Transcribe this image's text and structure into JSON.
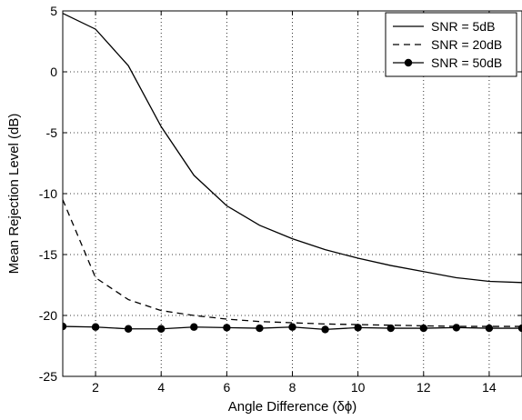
{
  "chart_data": {
    "type": "line",
    "title": "",
    "xlabel": "Angle Difference (δϕ)",
    "ylabel": "Mean Rejection Level (dB)",
    "xlim": [
      1,
      15
    ],
    "ylim": [
      -25,
      5
    ],
    "xticks": [
      2,
      4,
      6,
      8,
      10,
      12,
      14
    ],
    "yticks": [
      5,
      0,
      -5,
      -10,
      -15,
      -20,
      -25
    ],
    "grid": "dotted",
    "legend_position": "top-right",
    "x": [
      1,
      2,
      3,
      4,
      5,
      6,
      7,
      8,
      9,
      10,
      11,
      12,
      13,
      14,
      15
    ],
    "series": [
      {
        "name": "SNR = 5dB",
        "style": "solid",
        "values": [
          4.8,
          3.5,
          0.5,
          -4.5,
          -8.5,
          -11.0,
          -12.6,
          -13.7,
          -14.6,
          -15.3,
          -15.9,
          -16.4,
          -16.9,
          -17.2,
          -17.3
        ]
      },
      {
        "name": "SNR = 20dB",
        "style": "dashed",
        "values": [
          -10.5,
          -16.9,
          -18.7,
          -19.6,
          -20.0,
          -20.3,
          -20.5,
          -20.6,
          -20.7,
          -20.75,
          -20.8,
          -20.85,
          -20.9,
          -20.9,
          -20.9
        ]
      },
      {
        "name": "SNR = 50dB",
        "style": "solid-marker",
        "values": [
          -20.9,
          -20.95,
          -21.1,
          -21.1,
          -20.95,
          -21.0,
          -21.05,
          -20.95,
          -21.15,
          -21.0,
          -21.05,
          -21.05,
          -21.0,
          -21.05,
          -21.05
        ]
      }
    ]
  }
}
